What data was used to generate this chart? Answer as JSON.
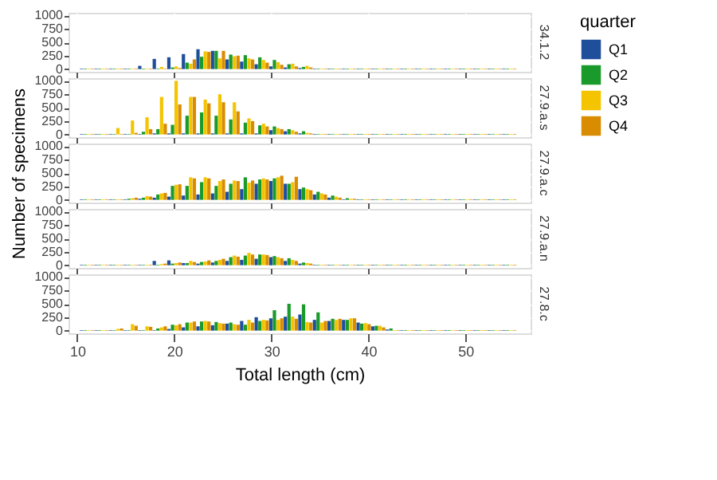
{
  "chart_data": [
    {
      "type": "bar",
      "title": "34.1.2",
      "x": [
        11,
        12.5,
        14,
        15.5,
        17,
        18.5,
        20,
        21.5,
        23,
        24.5,
        26,
        27.5,
        29,
        30.5,
        32,
        33.5,
        35,
        36.5,
        38,
        39.5,
        41,
        42.5,
        44,
        45.5,
        47,
        48.5,
        50,
        51.5,
        53,
        54.5
      ],
      "xlim": [
        9.1,
        56.7
      ],
      "ylim": [
        -50,
        1050
      ],
      "xticks": [
        10,
        20,
        30,
        40,
        50
      ],
      "yticks": [
        0,
        250,
        500,
        750,
        1000
      ],
      "grid": true,
      "tick_labels": "y",
      "series": [
        {
          "color": "#1f4e9b",
          "values": [
            10,
            10,
            10,
            10,
            60,
            190,
            220,
            280,
            370,
            340,
            180,
            140,
            90,
            50,
            30,
            20,
            10,
            10,
            10,
            10,
            10,
            10,
            10,
            10,
            10,
            10,
            10,
            10,
            10,
            10
          ]
        },
        {
          "color": "#1a9a2a",
          "values": [
            10,
            10,
            10,
            10,
            10,
            10,
            30,
            120,
            230,
            340,
            270,
            260,
            220,
            170,
            90,
            40,
            10,
            10,
            10,
            10,
            10,
            10,
            10,
            10,
            10,
            10,
            10,
            10,
            10,
            10
          ]
        },
        {
          "color": "#f5c400",
          "values": [
            10,
            10,
            10,
            10,
            10,
            40,
            50,
            100,
            330,
            200,
            240,
            200,
            170,
            130,
            100,
            60,
            10,
            10,
            10,
            10,
            10,
            10,
            10,
            10,
            10,
            10,
            10,
            10,
            10,
            10
          ]
        },
        {
          "color": "#d98c00",
          "values": [
            10,
            10,
            10,
            10,
            10,
            10,
            20,
            180,
            320,
            340,
            250,
            180,
            120,
            80,
            50,
            30,
            10,
            10,
            10,
            10,
            10,
            10,
            10,
            10,
            10,
            10,
            10,
            10,
            10,
            10
          ]
        }
      ]
    },
    {
      "type": "bar",
      "title": "27.9.a.s",
      "x": [
        11,
        12.5,
        14,
        15.5,
        17,
        18.5,
        20,
        21.5,
        23,
        24.5,
        26,
        27.5,
        29,
        30.5,
        32,
        33.5,
        35,
        36.5,
        38,
        39.5,
        41,
        42.5,
        44,
        45.5,
        47,
        48.5,
        50,
        51.5,
        53,
        54.5
      ],
      "xlim": [
        9.1,
        56.7
      ],
      "ylim": [
        -50,
        1050
      ],
      "xticks": [
        10,
        20,
        30,
        40,
        50
      ],
      "yticks": [
        0,
        250,
        500,
        750,
        1000
      ],
      "grid": true,
      "tick_labels": "y",
      "series": [
        {
          "color": "#1f4e9b",
          "values": [
            10,
            10,
            10,
            10,
            10,
            20,
            20,
            20,
            20,
            20,
            20,
            20,
            20,
            80,
            60,
            20,
            10,
            10,
            10,
            10,
            10,
            10,
            10,
            10,
            10,
            10,
            10,
            10,
            10,
            10
          ]
        },
        {
          "color": "#1a9a2a",
          "values": [
            10,
            10,
            10,
            10,
            50,
            100,
            180,
            350,
            410,
            350,
            280,
            220,
            170,
            150,
            100,
            60,
            10,
            10,
            10,
            10,
            10,
            10,
            10,
            10,
            10,
            10,
            10,
            10,
            10,
            10
          ]
        },
        {
          "color": "#f5c400",
          "values": [
            10,
            10,
            120,
            260,
            320,
            700,
            1000,
            700,
            650,
            750,
            600,
            300,
            200,
            120,
            80,
            30,
            10,
            10,
            10,
            10,
            10,
            10,
            10,
            10,
            10,
            10,
            10,
            10,
            10,
            10
          ]
        },
        {
          "color": "#d98c00",
          "values": [
            10,
            10,
            10,
            30,
            100,
            200,
            560,
            700,
            580,
            600,
            430,
            250,
            150,
            100,
            50,
            20,
            10,
            10,
            10,
            10,
            10,
            10,
            10,
            10,
            10,
            10,
            10,
            10,
            10,
            10
          ]
        }
      ]
    },
    {
      "type": "bar",
      "title": "27.9.a.c",
      "ylabel": "Number of specimens",
      "legend": "right",
      "legend_title": "quarter",
      "x": [
        11,
        12.5,
        14,
        15.5,
        17,
        18.5,
        20,
        21.5,
        23,
        24.5,
        26,
        27.5,
        29,
        30.5,
        32,
        33.5,
        35,
        36.5,
        38,
        39.5,
        41,
        42.5,
        44,
        45.5,
        47,
        48.5,
        50,
        51.5,
        53,
        54.5
      ],
      "xlim": [
        9.1,
        56.7
      ],
      "ylim": [
        -50,
        1050
      ],
      "xticks": [
        10,
        20,
        30,
        40,
        50
      ],
      "yticks": [
        0,
        250,
        500,
        750,
        1000
      ],
      "grid": true,
      "tick_labels": "y",
      "series": [
        {
          "name": "Q1",
          "color": "#1f4e9b",
          "values": [
            10,
            10,
            10,
            10,
            20,
            40,
            60,
            80,
            100,
            120,
            150,
            200,
            300,
            350,
            300,
            200,
            100,
            40,
            10,
            10,
            10,
            10,
            10,
            10,
            10,
            10,
            10,
            10,
            10,
            10
          ]
        },
        {
          "name": "Q2",
          "color": "#1a9a2a",
          "values": [
            10,
            10,
            10,
            20,
            40,
            100,
            260,
            260,
            330,
            260,
            300,
            420,
            380,
            400,
            300,
            230,
            150,
            80,
            30,
            10,
            10,
            10,
            10,
            10,
            10,
            10,
            10,
            10,
            10,
            10
          ]
        },
        {
          "name": "Q3",
          "color": "#f5c400",
          "values": [
            10,
            10,
            10,
            30,
            70,
            120,
            280,
            420,
            420,
            350,
            360,
            320,
            400,
            420,
            330,
            200,
            120,
            60,
            20,
            10,
            10,
            10,
            10,
            10,
            10,
            10,
            10,
            10,
            10,
            10
          ]
        },
        {
          "name": "Q4",
          "color": "#d98c00",
          "values": [
            10,
            10,
            10,
            40,
            60,
            130,
            290,
            400,
            400,
            380,
            350,
            360,
            380,
            450,
            430,
            180,
            100,
            40,
            20,
            10,
            10,
            10,
            10,
            10,
            10,
            10,
            10,
            10,
            10,
            10
          ]
        }
      ]
    },
    {
      "type": "bar",
      "title": "27.9.a.n",
      "x": [
        11,
        12.5,
        14,
        15.5,
        17,
        18.5,
        20,
        21.5,
        23,
        24.5,
        26,
        27.5,
        29,
        30.5,
        32,
        33.5,
        35,
        36.5,
        38,
        39.5,
        41,
        42.5,
        44,
        45.5,
        47,
        48.5,
        50,
        51.5,
        53,
        54.5
      ],
      "xlim": [
        9.1,
        56.7
      ],
      "ylim": [
        -50,
        1050
      ],
      "xticks": [
        10,
        20,
        30,
        40,
        50
      ],
      "yticks": [
        0,
        250,
        500,
        750,
        1000
      ],
      "grid": true,
      "tick_labels": "y",
      "series": [
        {
          "color": "#1f4e9b",
          "values": [
            10,
            10,
            10,
            10,
            10,
            80,
            90,
            40,
            30,
            50,
            80,
            100,
            120,
            150,
            80,
            30,
            10,
            10,
            10,
            10,
            10,
            10,
            10,
            10,
            10,
            10,
            10,
            10,
            10,
            10
          ]
        },
        {
          "color": "#1a9a2a",
          "values": [
            10,
            10,
            10,
            10,
            10,
            10,
            30,
            40,
            60,
            80,
            150,
            180,
            200,
            170,
            130,
            50,
            10,
            10,
            10,
            10,
            10,
            10,
            10,
            10,
            10,
            10,
            10,
            10,
            10,
            10
          ]
        },
        {
          "color": "#f5c400",
          "values": [
            10,
            10,
            10,
            10,
            10,
            20,
            40,
            80,
            70,
            100,
            180,
            230,
            200,
            150,
            100,
            40,
            10,
            10,
            10,
            10,
            10,
            10,
            10,
            10,
            10,
            10,
            10,
            10,
            10,
            10
          ]
        },
        {
          "color": "#d98c00",
          "values": [
            10,
            10,
            10,
            10,
            10,
            30,
            50,
            60,
            90,
            120,
            160,
            200,
            190,
            130,
            80,
            30,
            10,
            10,
            10,
            10,
            10,
            10,
            10,
            10,
            10,
            10,
            10,
            10,
            10,
            10
          ]
        }
      ]
    },
    {
      "type": "bar",
      "title": "27.8.c",
      "xlabel": "Total length (cm)",
      "x": [
        11,
        12.5,
        14,
        15.5,
        17,
        18.5,
        20,
        21.5,
        23,
        24.5,
        26,
        27.5,
        29,
        30.5,
        32,
        33.5,
        35,
        36.5,
        38,
        39.5,
        41,
        42.5,
        44,
        45.5,
        47,
        48.5,
        50,
        51.5,
        53,
        54.5
      ],
      "xlim": [
        9.1,
        56.7
      ],
      "ylim": [
        -50,
        1050
      ],
      "xticks": [
        10,
        20,
        30,
        40,
        50
      ],
      "yticks": [
        0,
        250,
        500,
        750,
        1000
      ],
      "grid": true,
      "series": [
        {
          "color": "#1f4e9b",
          "values": [
            10,
            10,
            10,
            10,
            10,
            10,
            30,
            60,
            80,
            100,
            130,
            180,
            250,
            230,
            260,
            300,
            200,
            180,
            200,
            150,
            80,
            20,
            10,
            10,
            10,
            10,
            10,
            10,
            10,
            10
          ]
        },
        {
          "color": "#1a9a2a",
          "values": [
            10,
            10,
            10,
            10,
            10,
            40,
            110,
            150,
            170,
            160,
            150,
            110,
            180,
            380,
            500,
            490,
            340,
            220,
            200,
            130,
            90,
            40,
            10,
            10,
            10,
            10,
            10,
            10,
            10,
            10
          ]
        },
        {
          "color": "#f5c400",
          "values": [
            10,
            10,
            30,
            120,
            80,
            60,
            100,
            150,
            180,
            140,
            120,
            200,
            200,
            200,
            260,
            160,
            150,
            200,
            230,
            140,
            90,
            10,
            10,
            10,
            10,
            10,
            10,
            10,
            10,
            10
          ]
        },
        {
          "color": "#d98c00",
          "values": [
            10,
            10,
            40,
            90,
            70,
            80,
            120,
            170,
            170,
            130,
            110,
            150,
            190,
            230,
            220,
            150,
            180,
            220,
            230,
            120,
            60,
            10,
            10,
            10,
            10,
            10,
            10,
            10,
            10,
            10
          ]
        }
      ]
    }
  ]
}
